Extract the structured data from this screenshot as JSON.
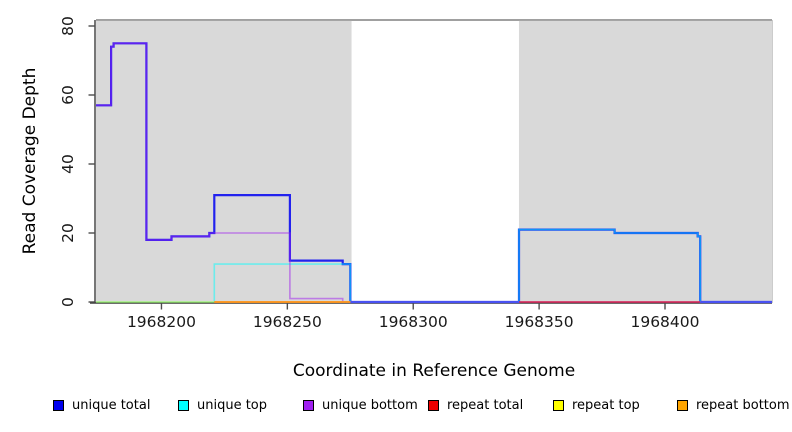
{
  "chart_data": {
    "type": "line",
    "subtype": "step-coverage",
    "title": "",
    "xlabel": "Coordinate in Reference Genome",
    "ylabel": "Read Coverage Depth",
    "xlim": [
      1968174,
      1968442.5
    ],
    "ylim": [
      0,
      80
    ],
    "x_ticks": [
      1968200,
      1968250,
      1968300,
      1968350,
      1968400
    ],
    "x_tick_labels": [
      "1968200",
      "1968250",
      "1968300",
      "1968350",
      "1968400"
    ],
    "y_ticks": [
      0,
      20,
      40,
      60,
      80
    ],
    "y_tick_labels": [
      "0",
      "20",
      "40",
      "60",
      "80"
    ],
    "grid": false,
    "legend_position": "bottom",
    "plot_background": "#FFFFFF",
    "shaded_regions": [
      {
        "x0": 1968174,
        "x1": 1968275.5,
        "color": "#D9D9D9",
        "meaning": "repeat region"
      },
      {
        "x0": 1968342,
        "x1": 1968442.5,
        "color": "#D9D9D9",
        "meaning": "repeat region"
      }
    ],
    "series": [
      {
        "name": "unique total",
        "legend_color": "#0000EE",
        "draw_color": "#2222EE",
        "opacity": 1,
        "width": 2.2,
        "segments": [
          {
            "steps": [
              [
                1968174,
                57
              ],
              [
                1968180,
                74
              ],
              [
                1968181,
                75
              ],
              [
                1968194,
                18
              ],
              [
                1968204,
                19
              ],
              [
                1968219,
                20
              ],
              [
                1968221,
                31
              ],
              [
                1968251,
                12
              ],
              [
                1968272,
                11
              ],
              [
                1968275,
                0
              ],
              [
                1968342,
                21
              ],
              [
                1968380,
                20
              ],
              [
                1968413,
                19
              ],
              [
                1968414,
                0
              ]
            ],
            "end": 1968442.5
          }
        ]
      },
      {
        "name": "unique top",
        "legend_color": "#00FFFF",
        "draw_color": "#00FFFF",
        "opacity": 0.5,
        "width": 1.6,
        "segments": [
          {
            "steps": [
              [
                1968174,
                0
              ],
              [
                1968221,
                11
              ],
              [
                1968275,
                0
              ],
              [
                1968342,
                21
              ],
              [
                1968380,
                20
              ],
              [
                1968413,
                19
              ],
              [
                1968414,
                0
              ]
            ],
            "end": 1968442.5
          }
        ]
      },
      {
        "name": "unique bottom",
        "legend_color": "#A020F0",
        "draw_color": "#A020F0",
        "opacity": 0.5,
        "width": 1.6,
        "segments": [
          {
            "steps": [
              [
                1968174,
                57
              ],
              [
                1968180,
                74
              ],
              [
                1968181,
                75
              ],
              [
                1968194,
                18
              ],
              [
                1968204,
                19
              ],
              [
                1968219,
                20
              ],
              [
                1968251,
                1
              ],
              [
                1968272,
                0
              ]
            ],
            "end": 1968442.5
          }
        ]
      },
      {
        "name": "repeat total",
        "legend_color": "#EE0000",
        "draw_color": "#DC2A50",
        "opacity": 1,
        "width": 1.6,
        "segments": [
          {
            "steps": [
              [
                1968221,
                0
              ]
            ],
            "end": 1968275
          },
          {
            "steps": [
              [
                1968342,
                0
              ]
            ],
            "end": 1968414
          }
        ]
      },
      {
        "name": "repeat top",
        "legend_color": "#FFFF00",
        "draw_color": "#FFFF00",
        "opacity": 0.45,
        "width": 1.6,
        "segments": [
          {
            "steps": [
              [
                1968174,
                0
              ]
            ],
            "end": 1968275
          }
        ]
      },
      {
        "name": "repeat bottom",
        "legend_color": "#FFA500",
        "draw_color": "#FF9A1E",
        "opacity": 1,
        "width": 1.8,
        "segments": [
          {
            "steps": [
              [
                1968221,
                0
              ]
            ],
            "end": 1968275
          }
        ]
      }
    ]
  }
}
